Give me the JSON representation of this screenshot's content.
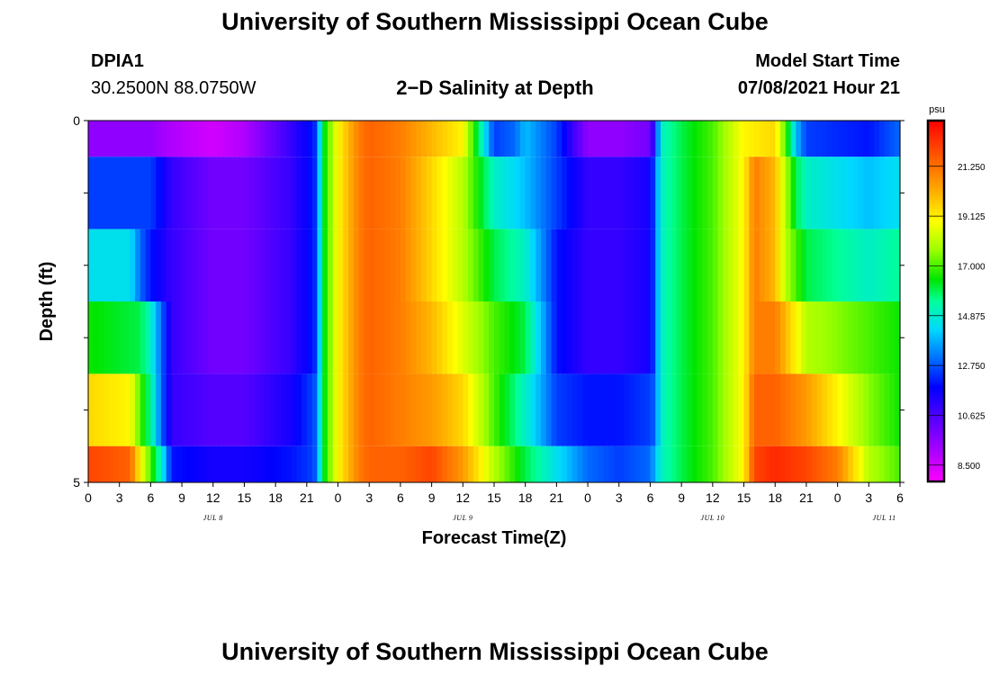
{
  "header": {
    "title": "University of Southern Mississippi Ocean Cube",
    "station_name": "DPIA1",
    "station_coords": "30.2500N  88.0750W",
    "plot_subtitle": "2−D Salinity at Depth",
    "model_start_label": "Model Start Time",
    "model_start_value": "07/08/2021 Hour 21"
  },
  "footer": {
    "title": "University of Southern Mississippi Ocean Cube"
  },
  "chart_data": {
    "type": "heatmap",
    "title": "2−D Salinity at Depth",
    "xlabel": "Forecast Time(Z)",
    "ylabel": "Depth (ft)",
    "x_tick_labels": [
      "0",
      "3",
      "6",
      "9",
      "12",
      "15",
      "18",
      "21",
      "0",
      "3",
      "6",
      "9",
      "12",
      "15",
      "18",
      "21",
      "0",
      "3",
      "6",
      "9",
      "12",
      "15",
      "18",
      "21",
      "0",
      "3",
      "6"
    ],
    "day_labels": [
      {
        "label": "JUL 8",
        "tick_index": 4
      },
      {
        "label": "JUL 9",
        "tick_index": 12
      },
      {
        "label": "JUL 10",
        "tick_index": 20
      },
      {
        "label": "JUL 11",
        "tick_index": 25.5
      }
    ],
    "y_range": [
      0,
      5
    ],
    "y_tick_labels": [
      "0",
      "5"
    ],
    "x_range_hours": [
      0,
      78
    ],
    "colorbar": {
      "unit": "psu",
      "ticks": [
        "21.250",
        "19.125",
        "17.000",
        "14.875",
        "12.750",
        "10.625",
        "8.500"
      ],
      "min": 7.8,
      "max": 23.2
    },
    "rows": [
      {
        "depth": 0,
        "key_times": [
          0,
          6,
          8,
          12,
          15,
          19.5,
          21.5,
          22,
          22.5,
          23,
          24,
          26,
          27,
          30,
          36,
          39,
          41,
          42,
          45,
          48,
          51,
          54,
          54.5,
          55,
          57,
          60,
          63,
          66,
          67,
          68,
          69,
          75,
          78
        ],
        "key_values": [
          9.5,
          9.5,
          9,
          8.5,
          9,
          11,
          12,
          12.5,
          16,
          17,
          19,
          21,
          21.5,
          21,
          19,
          12.5,
          13,
          14,
          12.5,
          9.5,
          9.5,
          10,
          12,
          15,
          16,
          17,
          19,
          19.5,
          17,
          14,
          12.5,
          12,
          13
        ]
      },
      {
        "depth": 1,
        "key_times": [
          0,
          6,
          8,
          12,
          15,
          19.5,
          21.5,
          22,
          22.5,
          23,
          24,
          26,
          27,
          30,
          33,
          36,
          39,
          42,
          45,
          48,
          51,
          54,
          54.5,
          55,
          57,
          60,
          63,
          64,
          66,
          67,
          68,
          69,
          75,
          78
        ],
        "key_values": [
          12.5,
          12.5,
          11,
          10,
          10,
          11,
          12,
          12.5,
          16,
          17,
          19,
          21,
          21.5,
          21,
          19.5,
          18,
          15,
          14,
          12.5,
          11,
          11,
          11.5,
          13,
          15,
          16,
          17,
          19,
          21,
          20,
          18,
          16,
          15,
          14,
          14.5
        ]
      },
      {
        "depth": 2,
        "key_times": [
          0,
          4,
          5,
          6,
          8,
          12,
          15,
          19.5,
          21.5,
          22,
          22.5,
          23,
          24,
          26,
          27,
          30,
          33,
          36,
          39,
          42,
          45,
          48,
          51,
          54,
          54.5,
          55,
          57,
          60,
          63,
          64,
          66,
          67,
          68,
          69,
          75,
          78
        ],
        "key_values": [
          14.5,
          14.5,
          13,
          12,
          11,
          10,
          10,
          11,
          12,
          12.5,
          16,
          17,
          19,
          21,
          21.5,
          21,
          19.5,
          18,
          16,
          15,
          12,
          11,
          11,
          11.5,
          13,
          15,
          16,
          17,
          19,
          21,
          20,
          18,
          17,
          16,
          15,
          15.5
        ]
      },
      {
        "depth": 3,
        "key_times": [
          0,
          5,
          6,
          7,
          8,
          12,
          15,
          19.5,
          21.5,
          22,
          22.5,
          23,
          24,
          26,
          27,
          30,
          33,
          36,
          39,
          42,
          45,
          48,
          51,
          54,
          54.5,
          55,
          57,
          60,
          63,
          64,
          66,
          67,
          68,
          69,
          75,
          78
        ],
        "key_values": [
          16.5,
          16,
          15,
          13,
          11,
          10,
          10,
          11,
          12,
          12.5,
          16,
          17,
          19,
          21,
          21.5,
          21,
          20,
          18.5,
          17,
          16,
          12,
          11,
          11,
          11.5,
          13,
          15,
          16,
          17,
          19,
          21,
          21,
          20,
          19,
          18,
          17,
          16.5
        ]
      },
      {
        "depth": 4,
        "key_times": [
          0,
          4,
          5,
          6,
          7,
          8,
          12,
          15,
          19.5,
          21.5,
          22,
          22.5,
          23,
          24,
          26,
          27,
          30,
          33,
          36,
          39,
          42,
          45,
          48,
          51,
          54,
          54.5,
          55,
          57,
          60,
          63,
          64,
          66,
          69,
          72,
          75,
          78
        ],
        "key_values": [
          19.5,
          19,
          17,
          15.5,
          13,
          11,
          10.5,
          10.5,
          11.5,
          12.5,
          13,
          16,
          17,
          19,
          21,
          21.5,
          21,
          20.5,
          19.5,
          17,
          15,
          12.5,
          12,
          12,
          12.5,
          13,
          15,
          16,
          17,
          19,
          21.5,
          21.5,
          20.5,
          19,
          17.5,
          16.5
        ]
      },
      {
        "depth": 5,
        "key_times": [
          0,
          4,
          5,
          6,
          7,
          8,
          12,
          15,
          19.5,
          21.5,
          22,
          22.5,
          23,
          24,
          26,
          27,
          30,
          33,
          36,
          39,
          42,
          45,
          48,
          51,
          54,
          54.5,
          55,
          57,
          60,
          63,
          64,
          66,
          69,
          72,
          75,
          78
        ],
        "key_values": [
          22,
          21.5,
          19,
          17,
          15,
          12,
          11.5,
          11.5,
          12,
          12.5,
          13,
          16,
          17,
          19,
          21,
          21.5,
          21.5,
          22,
          20.5,
          18,
          16,
          14.5,
          13,
          12.5,
          13,
          14,
          15,
          16,
          17,
          19,
          22,
          22.5,
          22,
          21,
          18,
          17
        ]
      }
    ]
  },
  "colors": {
    "background": "#ffffff",
    "frame": "#000000",
    "colorbar_border": "#000000"
  }
}
